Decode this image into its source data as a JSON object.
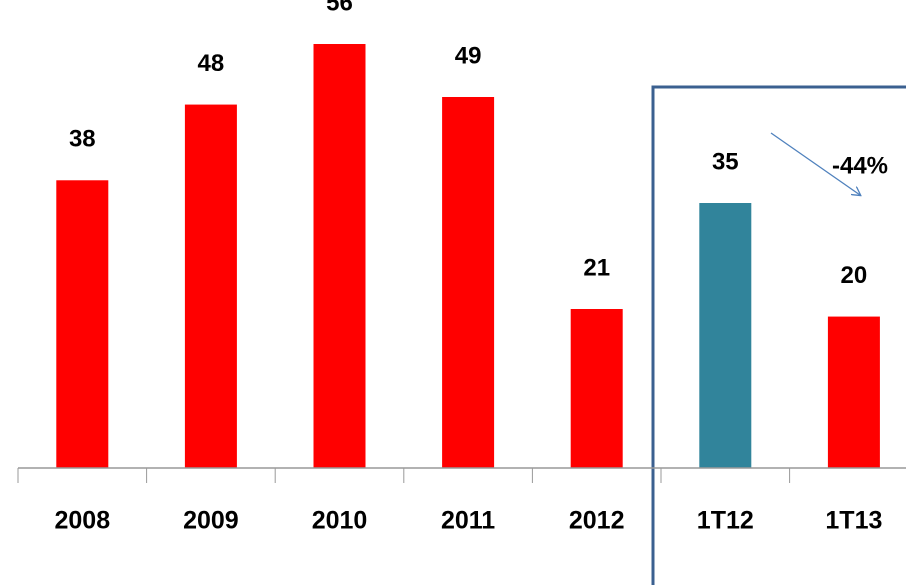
{
  "chart_data": {
    "type": "bar",
    "categories": [
      "2008",
      "2009",
      "2010",
      "2011",
      "2012",
      "1T12",
      "1T13"
    ],
    "values": [
      38,
      48,
      56,
      49,
      21,
      35,
      20
    ],
    "colors": [
      "#ff0000",
      "#ff0000",
      "#ff0000",
      "#ff0000",
      "#ff0000",
      "#31849b",
      "#ff0000"
    ],
    "annotation": "-44%"
  }
}
